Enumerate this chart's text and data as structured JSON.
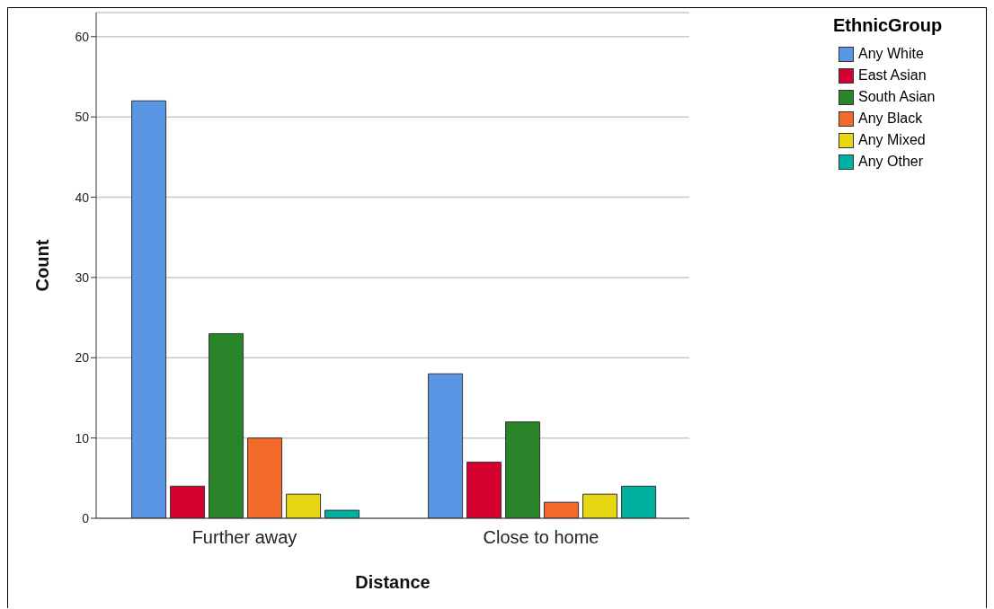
{
  "chart_data": {
    "type": "bar",
    "xlabel": "Distance",
    "ylabel": "Count",
    "legend_title": "EthnicGroup",
    "categories": [
      "Further away",
      "Close to home"
    ],
    "series": [
      {
        "name": "Any White",
        "color": "#5a96e3",
        "values": [
          52,
          18
        ]
      },
      {
        "name": "East Asian",
        "color": "#d5002f",
        "values": [
          4,
          7
        ]
      },
      {
        "name": "South Asian",
        "color": "#2a842a",
        "values": [
          23,
          12
        ]
      },
      {
        "name": "Any Black",
        "color": "#f36b2b",
        "values": [
          10,
          2
        ]
      },
      {
        "name": "Any Mixed",
        "color": "#e6d712",
        "values": [
          3,
          3
        ]
      },
      {
        "name": "Any Other",
        "color": "#00b1a1",
        "values": [
          1,
          4
        ]
      }
    ],
    "ylim": [
      0,
      63
    ],
    "yticks": [
      0,
      10,
      20,
      30,
      40,
      50,
      60
    ],
    "grid": "y",
    "legend": "top right"
  }
}
